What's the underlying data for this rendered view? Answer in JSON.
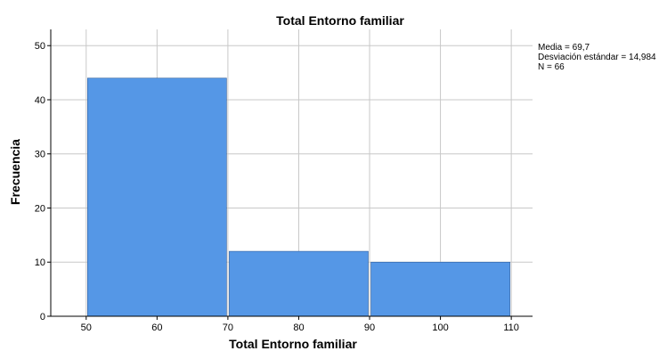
{
  "chart_data": {
    "type": "bar",
    "title": "Total Entorno familiar",
    "xlabel": "Total Entorno familiar",
    "ylabel": "Frecuencia",
    "xlim": [
      45,
      113
    ],
    "ylim": [
      0,
      53
    ],
    "x_ticks": [
      50,
      60,
      70,
      80,
      90,
      100,
      110
    ],
    "y_ticks": [
      0,
      10,
      20,
      30,
      40,
      50
    ],
    "grid": true,
    "bins": [
      {
        "start": 50,
        "end": 70,
        "value": 44
      },
      {
        "start": 70,
        "end": 90,
        "value": 12
      },
      {
        "start": 90,
        "end": 110,
        "value": 10
      }
    ],
    "values": [
      44,
      12,
      10
    ],
    "bar_color": "#5597e6",
    "stats": [
      "Media = 69,7",
      "Desviación estándar = 14,984",
      "N = 66"
    ],
    "legend_position": "right"
  }
}
